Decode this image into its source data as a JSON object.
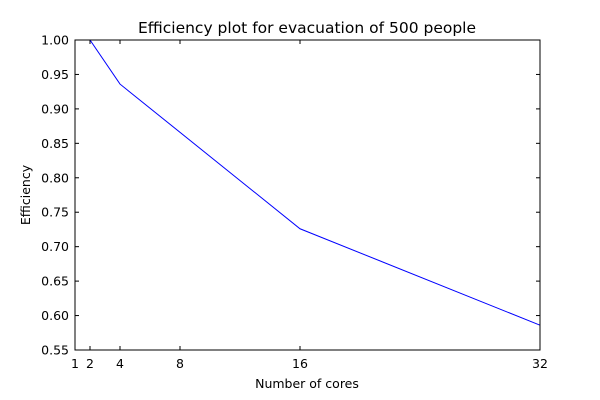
{
  "chart_data": {
    "type": "line",
    "title": "Efficiency plot for evacuation of 500 people",
    "xlabel": "Number of cores",
    "ylabel": "Efficiency",
    "xlim": [
      1,
      32
    ],
    "ylim": [
      0.55,
      1.0
    ],
    "xticks": [
      1,
      2,
      4,
      8,
      16,
      32
    ],
    "xtick_labels": [
      "1",
      "2",
      "4",
      "8",
      "16",
      "32"
    ],
    "yticks": [
      0.55,
      0.6,
      0.65,
      0.7,
      0.75,
      0.8,
      0.85,
      0.9,
      0.95,
      1.0
    ],
    "ytick_labels": [
      "0.55",
      "0.60",
      "0.65",
      "0.70",
      "0.75",
      "0.80",
      "0.85",
      "0.90",
      "0.95",
      "1.00"
    ],
    "grid": false,
    "legend": "none",
    "series": [
      {
        "color": "#0000ff",
        "x": [
          1,
          2,
          4,
          16,
          32
        ],
        "y": [
          1.0,
          1.0,
          0.936,
          0.726,
          0.586
        ]
      }
    ]
  }
}
